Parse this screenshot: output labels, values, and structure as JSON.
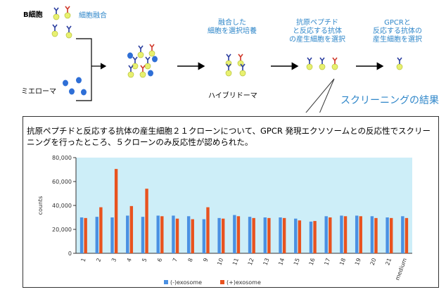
{
  "diagram": {
    "b_cell_label": "B細胞",
    "fusion_label": "細胞融合",
    "myeloma_label": "ミエローマ",
    "hybridoma_label": "ハイブリドーマ",
    "step1_label": [
      "融合した",
      "細胞を選択培養"
    ],
    "step2_label": [
      "抗原ペプチド",
      "と反応する抗体",
      "の産生細胞を選択"
    ],
    "step3_label": [
      "GPCRと",
      "反応する抗体の",
      "産生細胞を選択"
    ],
    "result_title": "スクリーニングの結果",
    "colors": {
      "accent_blue": "#2e86c9",
      "cell_yellow": "#e8f070",
      "myeloma_blue": "#2f6fd6"
    }
  },
  "callout_text": "抗原ペプチドと反応する抗体の産生細胞２１クローンについて、GPCR 発現エクソソームとの反応性でスクリーニングを行ったところ、５クローンのみ反応性が認められた。",
  "chart_data": {
    "type": "bar",
    "ylabel": "counts",
    "ylim": [
      0,
      80000
    ],
    "yticks": [
      "0",
      "20,000",
      "40,000",
      "60,000",
      "80,000"
    ],
    "grid": false,
    "legend_position": "bottom",
    "categories": [
      "1",
      "2",
      "3",
      "4",
      "5",
      "6",
      "7",
      "8",
      "9",
      "10",
      "11",
      "12",
      "13",
      "14",
      "15",
      "16",
      "17",
      "18",
      "19",
      "20",
      "21",
      "medium"
    ],
    "series": [
      {
        "name": "(-)exosome",
        "color": "#4a90e2",
        "values": [
          30000,
          30500,
          30000,
          31500,
          30500,
          31500,
          31500,
          31000,
          28500,
          29500,
          32000,
          30500,
          30000,
          30000,
          29000,
          26500,
          31000,
          31500,
          31500,
          31000,
          30000,
          31000
        ]
      },
      {
        "name": "(+)exosome",
        "color": "#e8531f",
        "values": [
          29500,
          38500,
          70500,
          39500,
          54000,
          31000,
          29000,
          28500,
          38500,
          29000,
          31000,
          29500,
          29500,
          29500,
          27500,
          27000,
          30000,
          31000,
          31000,
          29500,
          29500,
          29500
        ]
      }
    ]
  }
}
